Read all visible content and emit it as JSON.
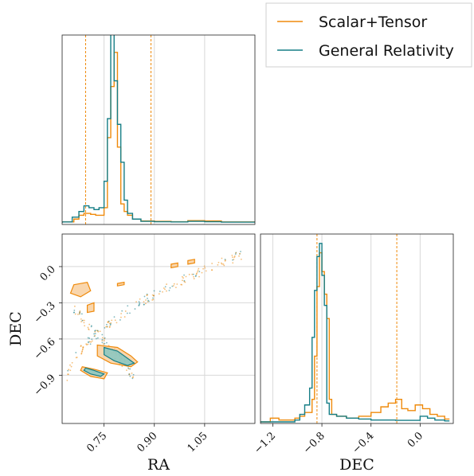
{
  "colors": {
    "scalar_tensor": "#ef8a0b",
    "general_relativity": "#167e86",
    "gr_fill": "#7fc6c3",
    "st_fill": "#f6c48a",
    "grid": "#d8d8d8",
    "frame": "#222222"
  },
  "chart_data": {
    "type": "corner",
    "legend": [
      "Scalar+Tensor",
      "General Relativity"
    ],
    "legend_position": "top-right",
    "grid": true,
    "ra": {
      "xlabel": "RA",
      "xlim": [
        0.625,
        1.2
      ],
      "ticks": [
        "0.75",
        "0.90",
        "1.05"
      ],
      "tick_values": [
        0.75,
        0.9,
        1.05
      ],
      "quantile_lines": [
        0.695,
        0.89
      ],
      "hist_scalar_tensor": [
        [
          0.625,
          0.005
        ],
        [
          0.66,
          0.02
        ],
        [
          0.675,
          0.04
        ],
        [
          0.69,
          0.05
        ],
        [
          0.71,
          0.045
        ],
        [
          0.725,
          0.04
        ],
        [
          0.74,
          0.04
        ],
        [
          0.75,
          0.08
        ],
        [
          0.76,
          0.45
        ],
        [
          0.77,
          0.72
        ],
        [
          0.78,
          0.9
        ],
        [
          0.79,
          0.4
        ],
        [
          0.8,
          0.1
        ],
        [
          0.81,
          0.06
        ],
        [
          0.82,
          0.04
        ],
        [
          0.835,
          0.02
        ],
        [
          0.86,
          0.01
        ],
        [
          0.9,
          0.008
        ],
        [
          0.95,
          0.006
        ],
        [
          1.0,
          0.012
        ],
        [
          1.05,
          0.01
        ],
        [
          1.1,
          0.005
        ],
        [
          1.2,
          0.005
        ]
      ],
      "hist_general_relativity": [
        [
          0.625,
          0.005
        ],
        [
          0.655,
          0.03
        ],
        [
          0.675,
          0.06
        ],
        [
          0.69,
          0.09
        ],
        [
          0.705,
          0.08
        ],
        [
          0.72,
          0.07
        ],
        [
          0.735,
          0.08
        ],
        [
          0.75,
          0.22
        ],
        [
          0.76,
          0.55
        ],
        [
          0.77,
          1.0
        ],
        [
          0.78,
          0.75
        ],
        [
          0.79,
          0.52
        ],
        [
          0.8,
          0.32
        ],
        [
          0.81,
          0.12
        ],
        [
          0.82,
          0.05
        ],
        [
          0.835,
          0.02
        ],
        [
          0.86,
          0.008
        ],
        [
          0.9,
          0.006
        ],
        [
          0.95,
          0.005
        ],
        [
          1.0,
          0.008
        ],
        [
          1.05,
          0.006
        ],
        [
          1.1,
          0.004
        ],
        [
          1.2,
          0.004
        ]
      ]
    },
    "dec": {
      "xlabel": "DEC",
      "ylabel": "DEC",
      "lim": [
        -1.3,
        0.27
      ],
      "ticks": [
        "−1.2",
        "−0.8",
        "−0.4",
        "0.0"
      ],
      "tick_values": [
        -1.2,
        -0.8,
        -0.4,
        0.0
      ],
      "y_ticks": [
        "0.0",
        "−0.3",
        "−0.6",
        "−0.9"
      ],
      "y_tick_values": [
        0.0,
        -0.3,
        -0.6,
        -0.9
      ],
      "quantile_lines": [
        -0.84,
        -0.19
      ],
      "hist_scalar_tensor": [
        [
          -1.3,
          0.0
        ],
        [
          -1.22,
          0.02
        ],
        [
          -1.15,
          0.01
        ],
        [
          -1.1,
          0.01
        ],
        [
          -1.02,
          0.02
        ],
        [
          -0.98,
          0.03
        ],
        [
          -0.94,
          0.05
        ],
        [
          -0.88,
          0.12
        ],
        [
          -0.86,
          0.35
        ],
        [
          -0.84,
          0.72
        ],
        [
          -0.82,
          0.9
        ],
        [
          -0.8,
          0.8
        ],
        [
          -0.78,
          0.68
        ],
        [
          -0.76,
          0.55
        ],
        [
          -0.74,
          0.12
        ],
        [
          -0.72,
          0.04
        ],
        [
          -0.68,
          0.03
        ],
        [
          -0.6,
          0.02
        ],
        [
          -0.5,
          0.03
        ],
        [
          -0.4,
          0.05
        ],
        [
          -0.32,
          0.08
        ],
        [
          -0.26,
          0.1
        ],
        [
          -0.2,
          0.12
        ],
        [
          -0.15,
          0.07
        ],
        [
          -0.1,
          0.06
        ],
        [
          -0.04,
          0.09
        ],
        [
          0.02,
          0.07
        ],
        [
          0.08,
          0.04
        ],
        [
          0.14,
          0.03
        ],
        [
          0.2,
          0.015
        ]
      ],
      "hist_general_relativity": [
        [
          -1.3,
          0.0
        ],
        [
          -1.02,
          0.01
        ],
        [
          -0.98,
          0.04
        ],
        [
          -0.94,
          0.09
        ],
        [
          -0.9,
          0.18
        ],
        [
          -0.88,
          0.45
        ],
        [
          -0.86,
          0.7
        ],
        [
          -0.84,
          0.88
        ],
        [
          -0.82,
          0.95
        ],
        [
          -0.8,
          0.78
        ],
        [
          -0.78,
          0.62
        ],
        [
          -0.76,
          0.1
        ],
        [
          -0.74,
          0.04
        ],
        [
          -0.68,
          0.03
        ],
        [
          -0.6,
          0.02
        ],
        [
          -0.5,
          0.015
        ],
        [
          -0.4,
          0.01
        ],
        [
          -0.3,
          0.01
        ],
        [
          -0.2,
          0.008
        ],
        [
          -0.1,
          0.008
        ],
        [
          0.0,
          0.03
        ],
        [
          0.06,
          0.02
        ],
        [
          0.12,
          0.01
        ],
        [
          0.2,
          0.005
        ]
      ]
    },
    "scatter_2d": {
      "xlabel": "RA",
      "ylabel": "DEC",
      "gr_contours": [
        [
          [
            0.75,
            -0.67
          ],
          [
            0.79,
            -0.7
          ],
          [
            0.82,
            -0.76
          ],
          [
            0.84,
            -0.8
          ],
          [
            0.82,
            -0.82
          ],
          [
            0.78,
            -0.78
          ],
          [
            0.75,
            -0.73
          ]
        ],
        [
          [
            0.695,
            -0.84
          ],
          [
            0.72,
            -0.86
          ],
          [
            0.75,
            -0.89
          ],
          [
            0.74,
            -0.91
          ],
          [
            0.71,
            -0.89
          ],
          [
            0.69,
            -0.86
          ]
        ]
      ],
      "st_contours": [
        [
          [
            0.73,
            -0.65
          ],
          [
            0.79,
            -0.67
          ],
          [
            0.83,
            -0.74
          ],
          [
            0.85,
            -0.79
          ],
          [
            0.83,
            -0.83
          ],
          [
            0.77,
            -0.8
          ],
          [
            0.73,
            -0.74
          ]
        ],
        [
          [
            0.685,
            -0.83
          ],
          [
            0.72,
            -0.85
          ],
          [
            0.76,
            -0.88
          ],
          [
            0.75,
            -0.93
          ],
          [
            0.71,
            -0.91
          ],
          [
            0.68,
            -0.86
          ]
        ],
        [
          [
            0.66,
            -0.15
          ],
          [
            0.7,
            -0.13
          ],
          [
            0.71,
            -0.2
          ],
          [
            0.68,
            -0.25
          ],
          [
            0.65,
            -0.22
          ]
        ],
        [
          [
            0.7,
            -0.32
          ],
          [
            0.72,
            -0.3
          ],
          [
            0.72,
            -0.37
          ],
          [
            0.7,
            -0.38
          ]
        ],
        [
          [
            0.79,
            -0.14
          ],
          [
            0.81,
            -0.13
          ],
          [
            0.81,
            -0.15
          ],
          [
            0.79,
            -0.16
          ]
        ],
        [
          [
            0.95,
            0.02
          ],
          [
            0.97,
            0.03
          ],
          [
            0.97,
            0.0
          ],
          [
            0.95,
            -0.01
          ]
        ],
        [
          [
            1.0,
            0.05
          ],
          [
            1.02,
            0.06
          ],
          [
            1.02,
            0.03
          ],
          [
            1.0,
            0.02
          ]
        ]
      ]
    }
  }
}
